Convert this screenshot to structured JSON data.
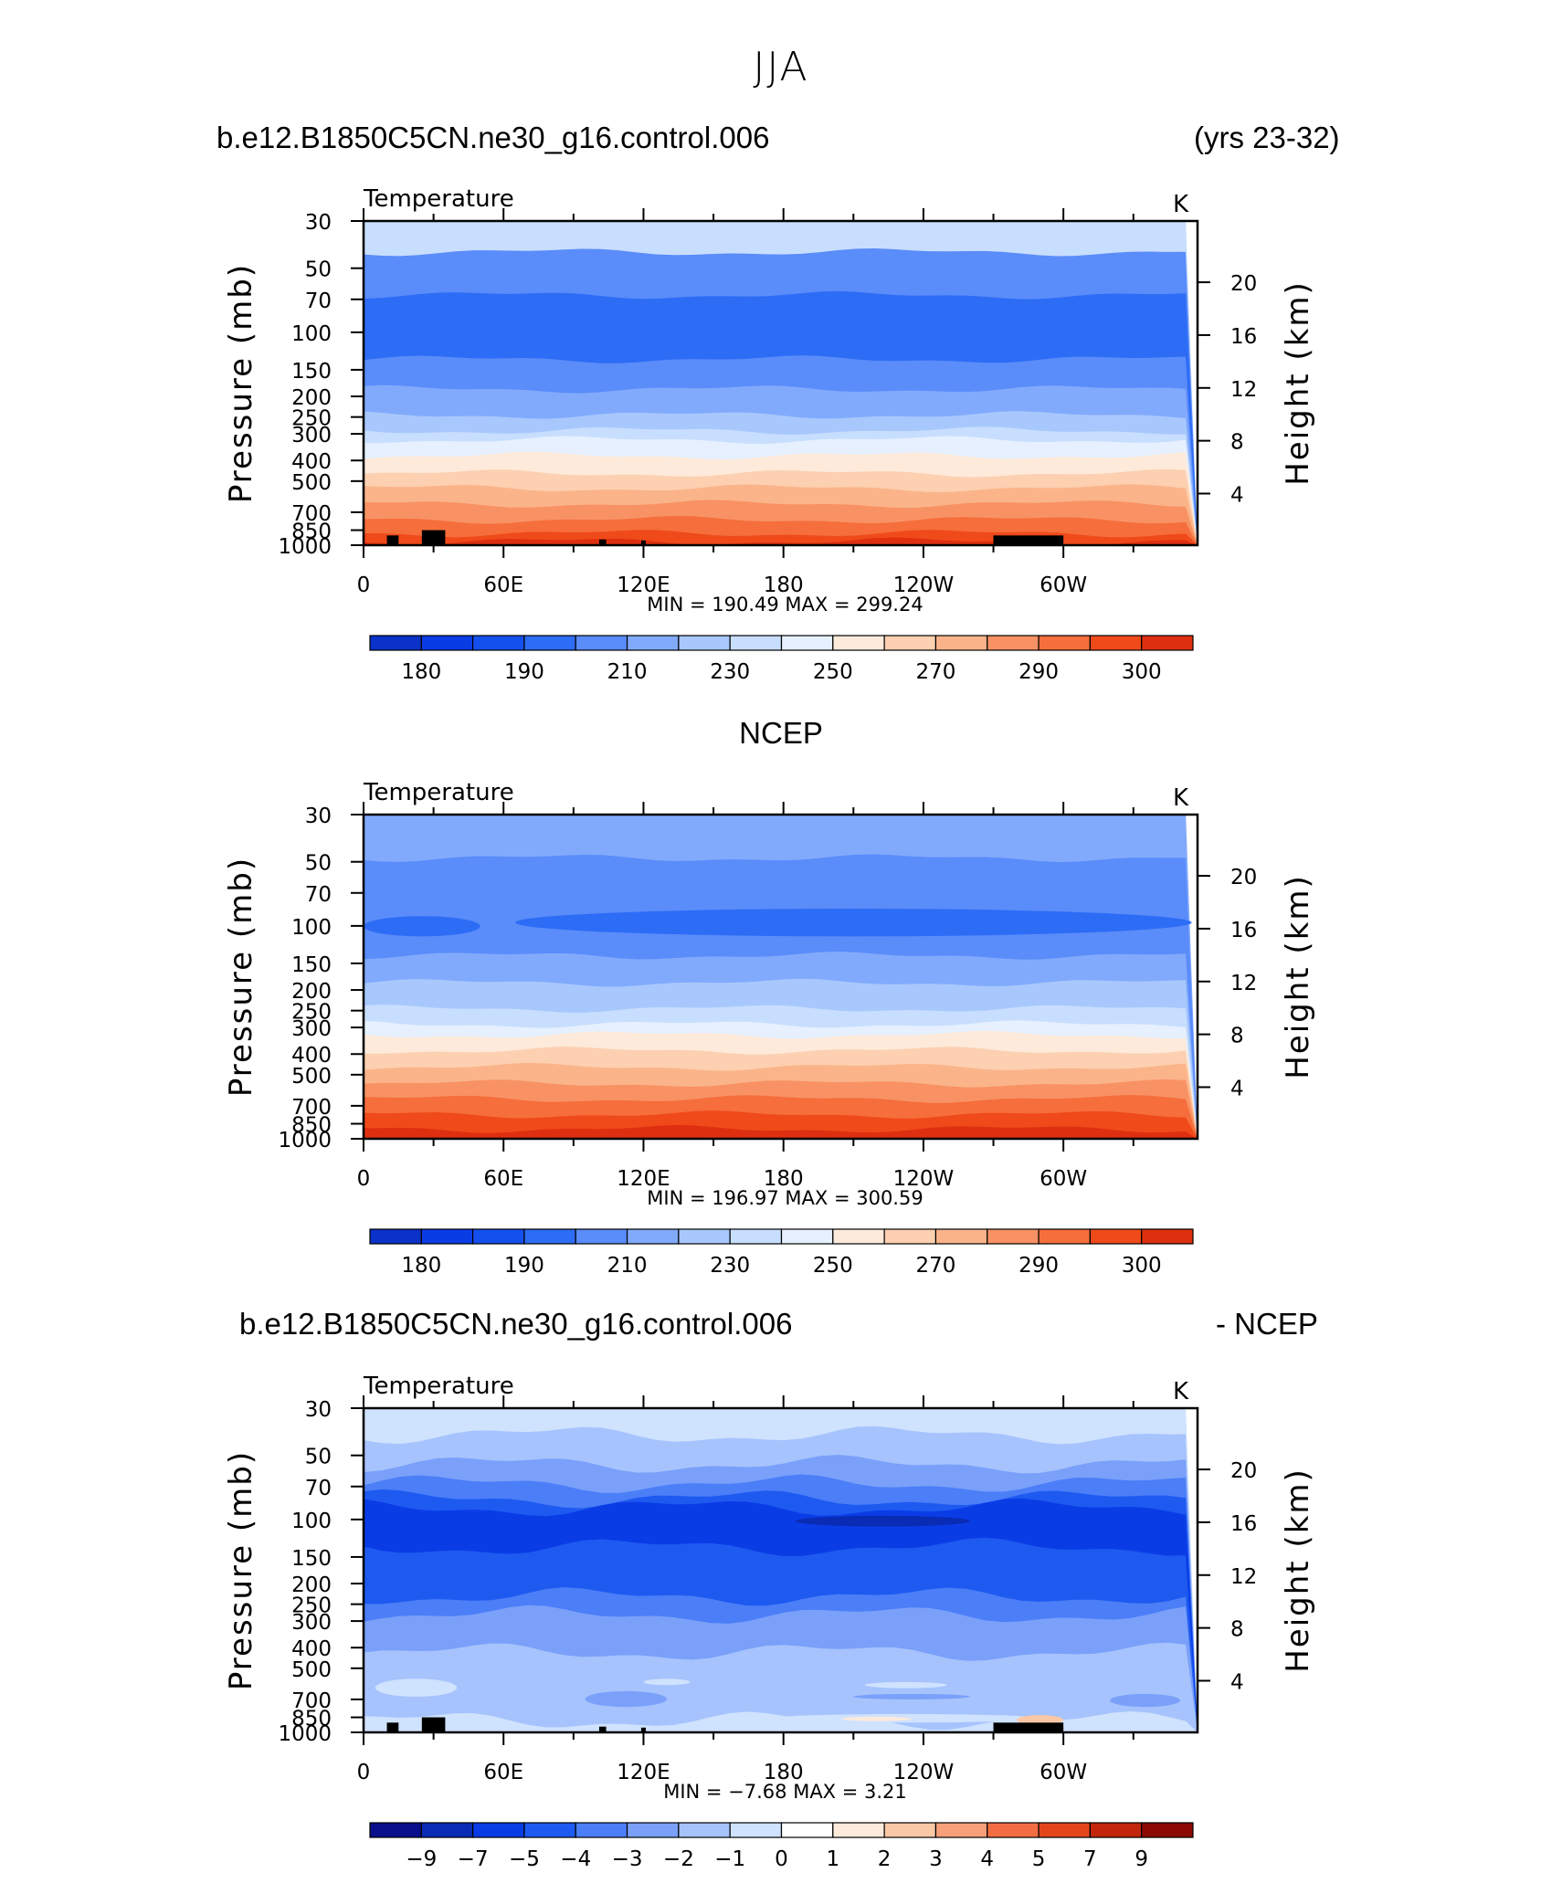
{
  "page_title": "JJA",
  "headers": {
    "panel1_left": "b.e12.B1850C5CN.ne30_g16.control.006",
    "panel1_right": "(yrs 23-32)",
    "panel2_center": "NCEP",
    "panel3_left": "b.e12.B1850C5CN.ne30_g16.control.006",
    "panel3_right": "- NCEP"
  },
  "colors": {
    "abs_palette": [
      "#0a0f8c",
      "#0a32c8",
      "#0a3ce6",
      "#1450ee",
      "#2d6cf5",
      "#5a8cfa",
      "#82aafc",
      "#a8c8fd",
      "#c8defe",
      "#e6f0fe",
      "#fdeadb",
      "#fcd0b0",
      "#fbb48a",
      "#f89264",
      "#f56e3c",
      "#f04a1a",
      "#de3010",
      "#b81c0a",
      "#8c0a05"
    ],
    "diff_palette": [
      "#0a0f8c",
      "#0a2bb4",
      "#0a3ce6",
      "#1e5af0",
      "#4b7ef7",
      "#7aa0fa",
      "#a6c3fd",
      "#cfe2fe",
      "#ffffff",
      "#fdeadb",
      "#fbc8a5",
      "#f8a07a",
      "#f26e42",
      "#e4461c",
      "#c2260c",
      "#8c0a05"
    ],
    "terrain": "#000000"
  },
  "chart_data": [
    {
      "type": "contour",
      "name": "model",
      "left_label": "Temperature",
      "right_label": "K",
      "ylabel": "Pressure (mb)",
      "ylabel_right": "Height (km)",
      "pressure_ticks": [
        30,
        50,
        70,
        100,
        150,
        200,
        250,
        300,
        400,
        500,
        700,
        850,
        1000
      ],
      "pressure_range": [
        1000,
        30
      ],
      "height_ticks": [
        20,
        16,
        12,
        8,
        4
      ],
      "x_ticks": [
        "0",
        "60E",
        "120E",
        "180",
        "120W",
        "60W"
      ],
      "x_tick_lon": [
        0,
        60,
        120,
        180,
        240,
        300
      ],
      "lon_range": [
        0,
        357.5
      ],
      "minmax": "MIN =  190.49   MAX =  299.24",
      "colorbar_labels": [
        "180",
        "190",
        "210",
        "230",
        "250",
        "270",
        "290",
        "300"
      ],
      "colorbar_label_boxes": [
        1,
        3,
        5,
        7,
        9,
        11,
        13,
        15
      ],
      "colorbar_boxes": 16,
      "palette": "abs",
      "layers": [
        {
          "p": 30,
          "c": 8
        },
        {
          "p": 42,
          "c": 5
        },
        {
          "p": 67,
          "c": 4
        },
        {
          "p": 134,
          "c": 5
        },
        {
          "p": 185,
          "c": 6
        },
        {
          "p": 245,
          "c": 7
        },
        {
          "p": 290,
          "c": 8
        },
        {
          "p": 320,
          "c": 9
        },
        {
          "p": 380,
          "c": 10
        },
        {
          "p": 460,
          "c": 11
        },
        {
          "p": 540,
          "c": 12
        },
        {
          "p": 640,
          "c": 13
        },
        {
          "p": 760,
          "c": 14
        },
        {
          "p": 880,
          "c": 15
        },
        {
          "p": 960,
          "c": 16
        }
      ],
      "terrain": [
        [
          10,
          15,
          900
        ],
        [
          25,
          35,
          850
        ],
        [
          101,
          104,
          940
        ],
        [
          119,
          121,
          950
        ],
        [
          270,
          300,
          900
        ]
      ]
    },
    {
      "type": "contour",
      "name": "ncep",
      "left_label": "Temperature",
      "right_label": "K",
      "ylabel": "Pressure (mb)",
      "ylabel_right": "Height (km)",
      "pressure_ticks": [
        30,
        50,
        70,
        100,
        150,
        200,
        250,
        300,
        400,
        500,
        700,
        850,
        1000
      ],
      "pressure_range": [
        1000,
        30
      ],
      "height_ticks": [
        20,
        16,
        12,
        8,
        4
      ],
      "x_ticks": [
        "0",
        "60E",
        "120E",
        "180",
        "120W",
        "60W"
      ],
      "x_tick_lon": [
        0,
        60,
        120,
        180,
        240,
        300
      ],
      "lon_range": [
        0,
        357.5
      ],
      "minmax": "MIN =  196.97   MAX =  300.59",
      "colorbar_labels": [
        "180",
        "190",
        "210",
        "230",
        "250",
        "270",
        "290",
        "300"
      ],
      "colorbar_label_boxes": [
        1,
        3,
        5,
        7,
        9,
        11,
        13,
        15
      ],
      "colorbar_boxes": 16,
      "palette": "abs",
      "layers": [
        {
          "p": 30,
          "c": 6
        },
        {
          "p": 48,
          "c": 5
        },
        {
          "p": 138,
          "c": 6
        },
        {
          "p": 185,
          "c": 7
        },
        {
          "p": 245,
          "c": 8
        },
        {
          "p": 290,
          "c": 9
        },
        {
          "p": 325,
          "c": 10
        },
        {
          "p": 385,
          "c": 11
        },
        {
          "p": 460,
          "c": 12
        },
        {
          "p": 550,
          "c": 13
        },
        {
          "p": 650,
          "c": 14
        },
        {
          "p": 770,
          "c": 15
        },
        {
          "p": 900,
          "c": 16
        }
      ],
      "blobs": [
        {
          "lon": [
            0,
            50
          ],
          "p": [
            90,
            112
          ],
          "c": 4
        },
        {
          "lon": [
            65,
            355
          ],
          "p": [
            83,
            112
          ],
          "c": 4
        }
      ],
      "terrain": []
    },
    {
      "type": "contour",
      "name": "difference",
      "left_label": "Temperature",
      "right_label": "K",
      "ylabel": "Pressure (mb)",
      "ylabel_right": "Height (km)",
      "pressure_ticks": [
        30,
        50,
        70,
        100,
        150,
        200,
        250,
        300,
        400,
        500,
        700,
        850,
        1000
      ],
      "pressure_range": [
        1000,
        30
      ],
      "height_ticks": [
        20,
        16,
        12,
        8,
        4
      ],
      "x_ticks": [
        "0",
        "60E",
        "120E",
        "180",
        "120W",
        "60W"
      ],
      "x_tick_lon": [
        0,
        60,
        120,
        180,
        240,
        300
      ],
      "lon_range": [
        0,
        357.5
      ],
      "minmax": "MIN =   −7.68   MAX =    3.21",
      "colorbar_labels": [
        "−9",
        "−7",
        "−5",
        "−4",
        "−3",
        "−2",
        "−1",
        "0",
        "1",
        "2",
        "3",
        "4",
        "5",
        "7",
        "9"
      ],
      "colorbar_label_boxes": [
        1,
        2,
        3,
        4,
        5,
        6,
        7,
        8,
        9,
        10,
        11,
        12,
        13,
        14,
        15
      ],
      "colorbar_boxes": 16,
      "palette": "diff",
      "layers": [
        {
          "p": 30,
          "c": 7
        },
        {
          "p": 40,
          "c": 6
        },
        {
          "p": 55,
          "c": 5
        },
        {
          "p": 68,
          "c": 4
        },
        {
          "p": 80,
          "c": 3
        },
        {
          "p": 88,
          "c": 2
        },
        {
          "p": 135,
          "c": 3
        },
        {
          "p": 230,
          "c": 4
        },
        {
          "p": 280,
          "c": 5
        },
        {
          "p": 420,
          "c": 6
        },
        {
          "p": 880,
          "c": 7
        }
      ],
      "blobs": [
        {
          "lon": [
            185,
            260
          ],
          "p": [
            96,
            108
          ],
          "c": 1
        },
        {
          "lon": [
            5,
            40
          ],
          "p": [
            560,
            680
          ],
          "c": 7
        },
        {
          "lon": [
            120,
            140
          ],
          "p": [
            560,
            600
          ],
          "c": 7
        },
        {
          "lon": [
            95,
            130
          ],
          "p": [
            640,
            760
          ],
          "c": 5
        },
        {
          "lon": [
            215,
            250
          ],
          "p": [
            580,
            620
          ],
          "c": 7
        },
        {
          "lon": [
            210,
            260
          ],
          "p": [
            660,
            700
          ],
          "c": 5
        },
        {
          "lon": [
            175,
            290
          ],
          "p": [
            820,
            900
          ],
          "c": 7
        },
        {
          "lon": [
            205,
            235
          ],
          "p": [
            845,
            885
          ],
          "c": 9
        },
        {
          "lon": [
            280,
            300
          ],
          "p": [
            830,
            920
          ],
          "c": 10
        },
        {
          "lon": [
            320,
            350
          ],
          "p": [
            660,
            760
          ],
          "c": 5
        },
        {
          "lon": [
            0,
            60
          ],
          "p": [
            880,
            960
          ],
          "c": 7
        }
      ],
      "terrain": [
        [
          10,
          15,
          900
        ],
        [
          25,
          35,
          850
        ],
        [
          101,
          104,
          940
        ],
        [
          119,
          121,
          950
        ],
        [
          270,
          300,
          900
        ]
      ]
    }
  ]
}
